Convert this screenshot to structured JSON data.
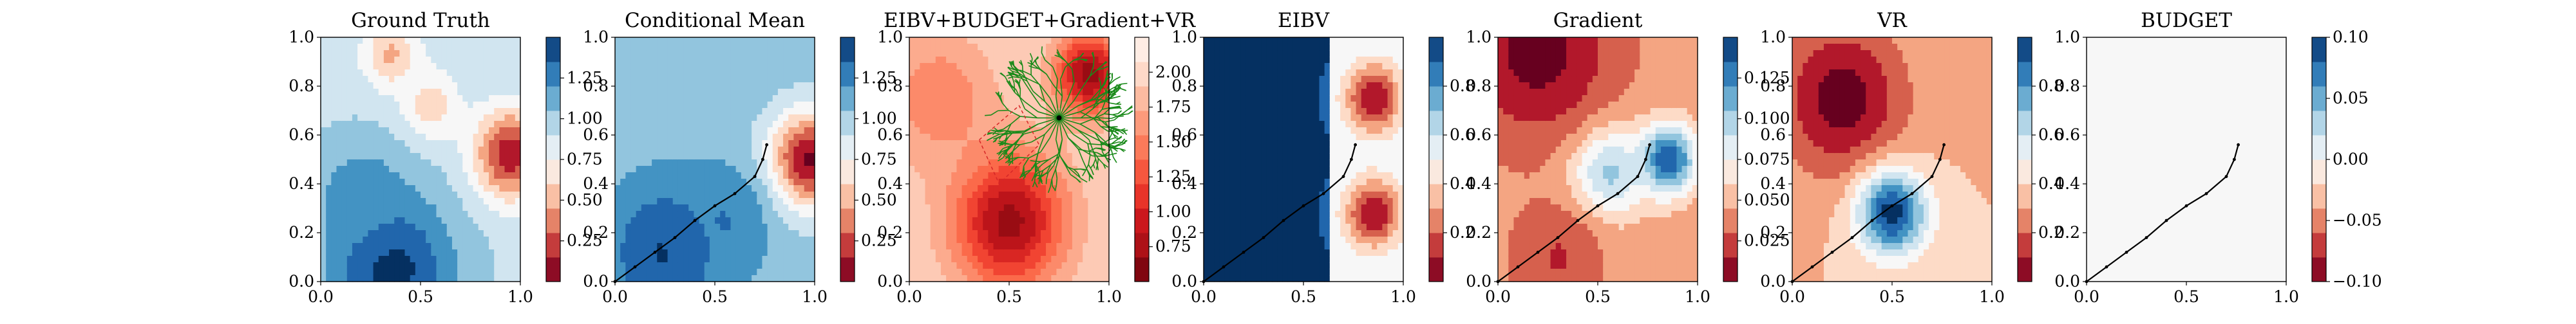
{
  "chart_data": [
    {
      "type": "heatmap",
      "title": "Ground Truth",
      "xlim": [
        0,
        1
      ],
      "ylim": [
        0,
        1
      ],
      "x_ticks": [
        "0.0",
        "0.5",
        "1.0"
      ],
      "y_ticks": [
        "0.0",
        "0.2",
        "0.4",
        "0.6",
        "0.8",
        "1.0"
      ],
      "colormap": "RdBu",
      "colorbar": {
        "range": [
          0.1,
          1.45
        ],
        "ticks": [
          "0.25",
          "0.50",
          "0.75",
          "1.00",
          "1.25"
        ]
      },
      "hotspots": [
        {
          "x": 0.95,
          "y": 0.52,
          "value": 0.2,
          "spread": 0.13
        },
        {
          "x": 0.35,
          "y": 0.93,
          "value": 0.55,
          "spread": 0.1
        },
        {
          "x": 0.55,
          "y": 0.72,
          "value": 0.62,
          "spread": 0.1
        },
        {
          "x": 0.35,
          "y": 0.05,
          "value": 1.45,
          "spread": 0.22
        },
        {
          "x": 0.2,
          "y": 0.35,
          "value": 1.2,
          "spread": 0.15
        }
      ],
      "base_value": 0.95,
      "path": []
    },
    {
      "type": "heatmap",
      "title": "Conditional Mean",
      "xlim": [
        0,
        1
      ],
      "ylim": [
        0,
        1
      ],
      "x_ticks": [
        "0.0",
        "0.5",
        "1.0"
      ],
      "y_ticks": [
        "0.0",
        "0.2",
        "0.4",
        "0.6",
        "0.8",
        "1.0"
      ],
      "colormap": "RdBu",
      "colorbar": {
        "range": [
          0.1,
          1.45
        ],
        "ticks": [
          "0.25",
          "0.50",
          "0.75",
          "1.00",
          "1.25"
        ]
      },
      "hotspots": [
        {
          "x": 0.97,
          "y": 0.5,
          "value": 0.15,
          "spread": 0.14
        },
        {
          "x": 0.25,
          "y": 0.12,
          "value": 1.4,
          "spread": 0.2
        },
        {
          "x": 0.55,
          "y": 0.25,
          "value": 1.25,
          "spread": 0.15
        }
      ],
      "base_value": 1.05,
      "path": [
        [
          0.0,
          0.0
        ],
        [
          0.1,
          0.06
        ],
        [
          0.2,
          0.12
        ],
        [
          0.3,
          0.18
        ],
        [
          0.4,
          0.25
        ],
        [
          0.5,
          0.31
        ],
        [
          0.6,
          0.36
        ],
        [
          0.7,
          0.43
        ],
        [
          0.74,
          0.5
        ],
        [
          0.76,
          0.56
        ]
      ]
    },
    {
      "type": "heatmap",
      "title": "EIBV+BUDGET+Gradient+VR",
      "xlim": [
        0,
        1
      ],
      "ylim": [
        0,
        1
      ],
      "x_ticks": [
        "0.0",
        "0.5",
        "1.0"
      ],
      "y_ticks": [
        "0.0",
        "0.2",
        "0.4",
        "0.6",
        "0.8",
        "1.0"
      ],
      "colormap": "Reds_r",
      "colorbar": {
        "range": [
          0.7,
          2.1
        ],
        "ticks": [
          "0.75",
          "1.00",
          "1.25",
          "1.50",
          "1.75",
          "2.00"
        ]
      },
      "hotspots": [
        {
          "x": 0.5,
          "y": 0.25,
          "value": 0.85,
          "spread": 0.2
        },
        {
          "x": 0.9,
          "y": 0.85,
          "value": 0.85,
          "spread": 0.12
        },
        {
          "x": 0.15,
          "y": 0.75,
          "value": 1.5,
          "spread": 0.2
        }
      ],
      "base_value": 1.9,
      "path": [],
      "tree_root": [
        0.75,
        0.67
      ],
      "candidate_polygon": [
        [
          0.35,
          0.58
        ],
        [
          0.55,
          0.72
        ],
        [
          0.65,
          0.56
        ],
        [
          0.45,
          0.4
        ]
      ]
    },
    {
      "type": "heatmap",
      "title": "EIBV",
      "xlim": [
        0,
        1
      ],
      "ylim": [
        0,
        1
      ],
      "x_ticks": [
        "0.0",
        "0.5",
        "1.0"
      ],
      "y_ticks": [
        "0.0",
        "0.2",
        "0.4",
        "0.6",
        "0.8",
        "1.0"
      ],
      "colormap": "RdBu",
      "colorbar": {
        "range": [
          0.0,
          1.0
        ],
        "ticks": [
          "0.2",
          "0.4",
          "0.6",
          "0.8"
        ]
      },
      "hotspots": [
        {
          "x": 0.85,
          "y": 0.75,
          "value": 0.05,
          "spread": 0.1
        },
        {
          "x": 0.85,
          "y": 0.28,
          "value": 0.05,
          "spread": 0.1
        }
      ],
      "base_value": 0.97,
      "right_region_value": 0.55,
      "path": [
        [
          0.0,
          0.0
        ],
        [
          0.1,
          0.06
        ],
        [
          0.2,
          0.12
        ],
        [
          0.3,
          0.18
        ],
        [
          0.4,
          0.25
        ],
        [
          0.5,
          0.31
        ],
        [
          0.6,
          0.36
        ],
        [
          0.7,
          0.43
        ],
        [
          0.74,
          0.5
        ],
        [
          0.76,
          0.56
        ]
      ]
    },
    {
      "type": "heatmap",
      "title": "Gradient",
      "xlim": [
        0,
        1
      ],
      "ylim": [
        0,
        1
      ],
      "x_ticks": [
        "0.0",
        "0.5",
        "1.0"
      ],
      "y_ticks": [
        "0.0",
        "0.2",
        "0.4",
        "0.6",
        "0.8",
        "1.0"
      ],
      "colormap": "RdBu",
      "colorbar": {
        "range": [
          0.0,
          0.14
        ],
        "ticks": [
          "0.025",
          "0.050",
          "0.075",
          "0.100",
          "0.125"
        ]
      },
      "hotspots": [
        {
          "x": 0.85,
          "y": 0.5,
          "value": 0.135,
          "spread": 0.1
        },
        {
          "x": 0.55,
          "y": 0.45,
          "value": 0.1,
          "spread": 0.13
        },
        {
          "x": 0.2,
          "y": 0.95,
          "value": 0.0,
          "spread": 0.25
        },
        {
          "x": 0.3,
          "y": 0.1,
          "value": 0.02,
          "spread": 0.15
        }
      ],
      "base_value": 0.04,
      "path": [
        [
          0.0,
          0.0
        ],
        [
          0.1,
          0.06
        ],
        [
          0.2,
          0.12
        ],
        [
          0.3,
          0.18
        ],
        [
          0.4,
          0.25
        ],
        [
          0.5,
          0.31
        ],
        [
          0.6,
          0.36
        ],
        [
          0.7,
          0.43
        ],
        [
          0.74,
          0.5
        ],
        [
          0.76,
          0.56
        ]
      ]
    },
    {
      "type": "heatmap",
      "title": "VR",
      "xlim": [
        0,
        1
      ],
      "ylim": [
        0,
        1
      ],
      "x_ticks": [
        "0.0",
        "0.5",
        "1.0"
      ],
      "y_ticks": [
        "0.0",
        "0.2",
        "0.4",
        "0.6",
        "0.8",
        "1.0"
      ],
      "colormap": "RdBu",
      "colorbar": {
        "range": [
          0.0,
          1.0
        ],
        "ticks": [
          "0.2",
          "0.4",
          "0.6",
          "0.8"
        ]
      },
      "hotspots": [
        {
          "x": 0.25,
          "y": 0.75,
          "value": 0.0,
          "spread": 0.22
        },
        {
          "x": 0.5,
          "y": 0.28,
          "value": 1.0,
          "spread": 0.12
        }
      ],
      "base_value": 0.35,
      "path": [
        [
          0.0,
          0.0
        ],
        [
          0.1,
          0.06
        ],
        [
          0.2,
          0.12
        ],
        [
          0.3,
          0.18
        ],
        [
          0.4,
          0.25
        ],
        [
          0.5,
          0.31
        ],
        [
          0.6,
          0.36
        ],
        [
          0.7,
          0.43
        ],
        [
          0.74,
          0.5
        ],
        [
          0.76,
          0.56
        ]
      ]
    },
    {
      "type": "heatmap",
      "title": "BUDGET",
      "xlim": [
        0,
        1
      ],
      "ylim": [
        0,
        1
      ],
      "x_ticks": [
        "0.0",
        "0.5",
        "1.0"
      ],
      "y_ticks": [
        "0.0",
        "0.2",
        "0.4",
        "0.6",
        "0.8",
        "1.0"
      ],
      "colormap": "RdBu",
      "colorbar": {
        "range": [
          -0.1,
          0.1
        ],
        "ticks": [
          "0.10",
          "0.05",
          "0.00",
          "−0.05",
          "−0.10"
        ]
      },
      "hotspots": [],
      "base_value": 0.0,
      "path": [
        [
          0.0,
          0.0
        ],
        [
          0.1,
          0.06
        ],
        [
          0.2,
          0.12
        ],
        [
          0.3,
          0.18
        ],
        [
          0.4,
          0.25
        ],
        [
          0.5,
          0.31
        ],
        [
          0.6,
          0.36
        ],
        [
          0.7,
          0.43
        ],
        [
          0.74,
          0.5
        ],
        [
          0.76,
          0.56
        ]
      ]
    }
  ]
}
